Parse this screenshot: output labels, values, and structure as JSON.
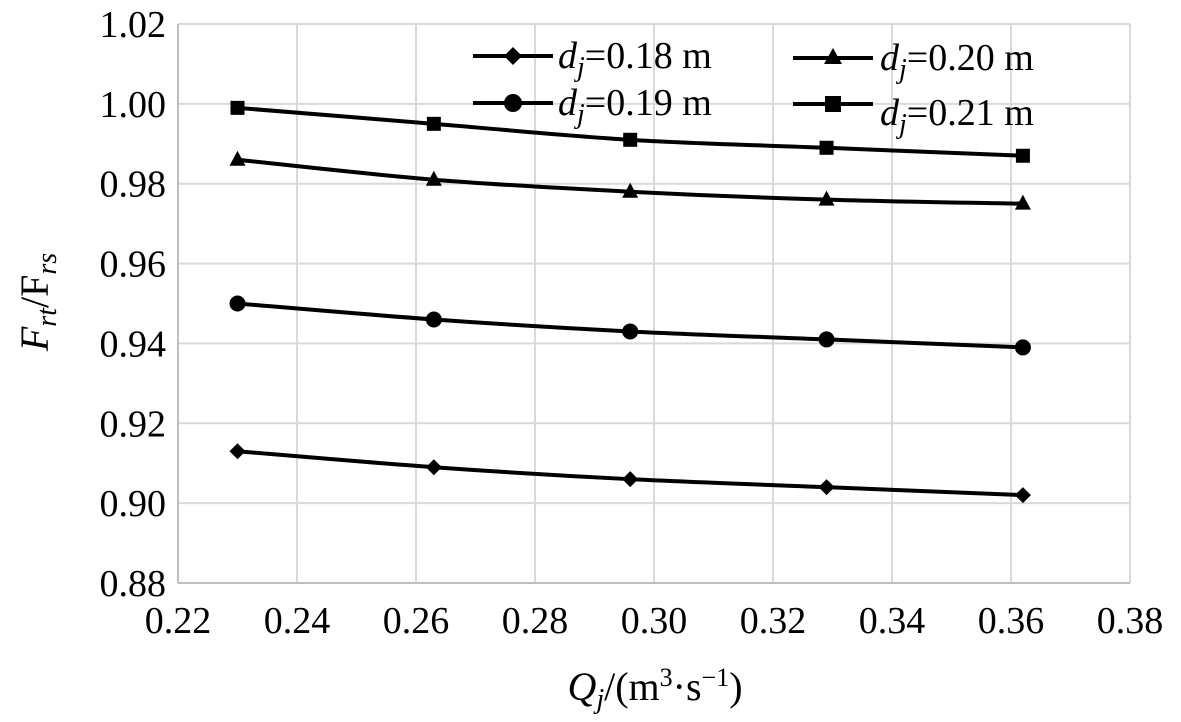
{
  "chart_data": {
    "type": "line",
    "title": "",
    "xlabel": {
      "main": "Q",
      "main_sub": "j",
      "unit_prefix": "/(m",
      "unit_sup1": "3",
      "unit_mid": "·s",
      "unit_sup2": "−1",
      "unit_suffix": ")"
    },
    "ylabel": {
      "part1": "F",
      "part1_sub": "rt",
      "part2": "/F",
      "part2_sub": "rs"
    },
    "xlim": [
      0.22,
      0.38
    ],
    "ylim": [
      0.88,
      1.02
    ],
    "x_ticks": [
      "0.22",
      "0.24",
      "0.26",
      "0.28",
      "0.30",
      "0.32",
      "0.34",
      "0.36",
      "0.38"
    ],
    "y_ticks": [
      "0.88",
      "0.90",
      "0.92",
      "0.94",
      "0.96",
      "0.98",
      "1.00",
      "1.02"
    ],
    "grid": true,
    "legend_position": "top-right",
    "x": [
      0.23,
      0.263,
      0.296,
      0.329,
      0.362
    ],
    "series": [
      {
        "name_main": "d",
        "name_sub": "j",
        "name_value": "=0.18 m",
        "marker": "diamond",
        "values": [
          0.913,
          0.909,
          0.906,
          0.904,
          0.902
        ]
      },
      {
        "name_main": "d",
        "name_sub": "j",
        "name_value": "=0.19 m",
        "marker": "circle",
        "values": [
          0.95,
          0.946,
          0.943,
          0.941,
          0.939
        ]
      },
      {
        "name_main": "d",
        "name_sub": "j",
        "name_value": "=0.20 m",
        "marker": "triangle",
        "values": [
          0.986,
          0.981,
          0.978,
          0.976,
          0.975
        ]
      },
      {
        "name_main": "d",
        "name_sub": "j",
        "name_value": "=0.21 m",
        "marker": "square",
        "values": [
          0.999,
          0.995,
          0.991,
          0.989,
          0.987
        ]
      }
    ],
    "colors": {
      "line": "#000000",
      "grid": "#d9d9d9",
      "axis": "#bfbfbf"
    }
  }
}
